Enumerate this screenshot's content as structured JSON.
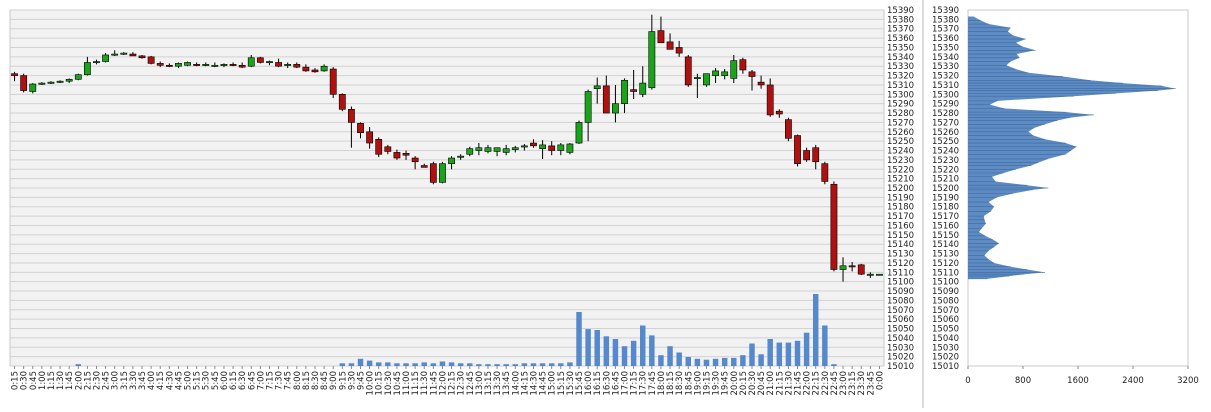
{
  "chart_data": [
    {
      "type": "candlestick",
      "title": "",
      "xlabel": "",
      "ylabel": "",
      "ylim": [
        15010,
        15390
      ],
      "y_tick_step": 10,
      "grid": true,
      "x_labels": [
        "0:15",
        "0:30",
        "0:45",
        "1:00",
        "1:15",
        "1:30",
        "1:45",
        "2:00",
        "2:15",
        "2:30",
        "2:45",
        "3:00",
        "3:15",
        "3:30",
        "3:45",
        "4:00",
        "4:15",
        "4:30",
        "4:45",
        "5:00",
        "5:15",
        "5:30",
        "5:45",
        "6:00",
        "6:15",
        "6:30",
        "6:45",
        "7:00",
        "7:15",
        "7:30",
        "7:45",
        "8:00",
        "8:15",
        "8:30",
        "8:45",
        "9:00",
        "9:15",
        "9:30",
        "9:45",
        "10:00",
        "10:15",
        "10:30",
        "10:45",
        "11:00",
        "11:15",
        "11:30",
        "11:45",
        "12:00",
        "12:15",
        "12:30",
        "12:45",
        "13:00",
        "13:15",
        "13:30",
        "13:45",
        "14:00",
        "14:15",
        "14:30",
        "14:45",
        "15:00",
        "15:15",
        "15:30",
        "15:45",
        "16:00",
        "16:15",
        "16:30",
        "16:45",
        "17:00",
        "17:15",
        "17:30",
        "17:45",
        "18:00",
        "18:15",
        "18:30",
        "18:45",
        "19:00",
        "19:15",
        "19:30",
        "19:45",
        "20:00",
        "20:15",
        "20:30",
        "20:45",
        "21:00",
        "21:15",
        "21:30",
        "21:45",
        "22:00",
        "22:15",
        "22:30",
        "22:45",
        "23:00",
        "23:15",
        "23:30",
        "23:45",
        "0:00"
      ],
      "ohlc": [
        [
          15322,
          15324,
          15314,
          15320
        ],
        [
          15320,
          15322,
          15302,
          15304
        ],
        [
          15303,
          15312,
          15301,
          15311
        ],
        [
          15311,
          15313,
          15310,
          15312
        ],
        [
          15312,
          15314,
          15311,
          15313
        ],
        [
          15313,
          15315,
          15312,
          15314
        ],
        [
          15314,
          15317,
          15312,
          15316
        ],
        [
          15316,
          15322,
          15315,
          15321
        ],
        [
          15321,
          15340,
          15320,
          15334
        ],
        [
          15334,
          15337,
          15332,
          15335
        ],
        [
          15335,
          15344,
          15334,
          15342
        ],
        [
          15342,
          15347,
          15341,
          15343
        ],
        [
          15343,
          15345,
          15342,
          15344
        ],
        [
          15343,
          15345,
          15341,
          15341
        ],
        [
          15341,
          15342,
          15338,
          15339
        ],
        [
          15340,
          15341,
          15332,
          15333
        ],
        [
          15333,
          15335,
          15329,
          15331
        ],
        [
          15331,
          15333,
          15329,
          15330
        ],
        [
          15330,
          15334,
          15328,
          15333
        ],
        [
          15331,
          15335,
          15330,
          15334
        ],
        [
          15332,
          15334,
          15330,
          15331
        ],
        [
          15331,
          15334,
          15330,
          15332
        ],
        [
          15331,
          15334,
          15329,
          15331
        ],
        [
          15331,
          15333,
          15329,
          15332
        ],
        [
          15332,
          15334,
          15330,
          15331
        ],
        [
          15331,
          15334,
          15328,
          15329
        ],
        [
          15330,
          15342,
          15329,
          15339
        ],
        [
          15339,
          15340,
          15333,
          15334
        ],
        [
          15334,
          15336,
          15331,
          15335
        ],
        [
          15334,
          15338,
          15329,
          15330
        ],
        [
          15331,
          15334,
          15328,
          15332
        ],
        [
          15332,
          15334,
          15328,
          15329
        ],
        [
          15329,
          15332,
          15324,
          15325
        ],
        [
          15326,
          15328,
          15323,
          15324
        ],
        [
          15325,
          15332,
          15324,
          15330
        ],
        [
          15327,
          15329,
          15296,
          15300
        ],
        [
          15300,
          15301,
          15282,
          15284
        ],
        [
          15284,
          15287,
          15243,
          15270
        ],
        [
          15269,
          15270,
          15253,
          15259
        ],
        [
          15260,
          15265,
          15242,
          15248
        ],
        [
          15252,
          15254,
          15233,
          15236
        ],
        [
          15244,
          15246,
          15236,
          15239
        ],
        [
          15238,
          15241,
          15230,
          15232
        ],
        [
          15237,
          15240,
          15230,
          15235
        ],
        [
          15232,
          15234,
          15220,
          15228
        ],
        [
          15224,
          15226,
          15222,
          15222
        ],
        [
          15226,
          15228,
          15204,
          15206
        ],
        [
          15206,
          15228,
          15205,
          15226
        ],
        [
          15226,
          15234,
          15220,
          15232
        ],
        [
          15233,
          15236,
          15230,
          15234
        ],
        [
          15236,
          15244,
          15234,
          15242
        ],
        [
          15240,
          15248,
          15235,
          15243
        ],
        [
          15239,
          15246,
          15237,
          15243
        ],
        [
          15239,
          15242,
          15234,
          15243
        ],
        [
          15238,
          15246,
          15235,
          15242
        ],
        [
          15241,
          15245,
          15238,
          15243
        ],
        [
          15244,
          15247,
          15240,
          15245
        ],
        [
          15248,
          15252,
          15243,
          15245
        ],
        [
          15242,
          15251,
          15231,
          15246
        ],
        [
          15245,
          15250,
          15235,
          15240
        ],
        [
          15240,
          15248,
          15235,
          15246
        ],
        [
          15238,
          15248,
          15236,
          15247
        ],
        [
          15248,
          15272,
          15247,
          15270
        ],
        [
          15270,
          15305,
          15250,
          15303
        ],
        [
          15306,
          15318,
          15290,
          15309
        ],
        [
          15309,
          15320,
          15282,
          15280
        ],
        [
          15280,
          15310,
          15270,
          15290
        ],
        [
          15290,
          15317,
          15280,
          15315
        ],
        [
          15305,
          15326,
          15295,
          15303
        ],
        [
          15300,
          15330,
          15297,
          15312
        ],
        [
          15307,
          15385,
          15305,
          15367
        ],
        [
          15368,
          15383,
          15355,
          15355
        ],
        [
          15356,
          15365,
          15348,
          15348
        ],
        [
          15350,
          15357,
          15340,
          15344
        ],
        [
          15340,
          15342,
          15308,
          15310
        ],
        [
          15317,
          15322,
          15296,
          15318
        ],
        [
          15310,
          15322,
          15308,
          15322
        ],
        [
          15320,
          15328,
          15312,
          15325
        ],
        [
          15320,
          15327,
          15316,
          15324
        ],
        [
          15317,
          15342,
          15312,
          15336
        ],
        [
          15337,
          15339,
          15322,
          15326
        ],
        [
          15324,
          15326,
          15304,
          15319
        ],
        [
          15313,
          15320,
          15306,
          15310
        ],
        [
          15310,
          15317,
          15276,
          15278
        ],
        [
          15282,
          15284,
          15275,
          15279
        ],
        [
          15273,
          15275,
          15250,
          15253
        ],
        [
          15256,
          15257,
          15223,
          15226
        ],
        [
          15240,
          15243,
          15228,
          15230
        ],
        [
          15243,
          15246,
          15220,
          15228
        ],
        [
          15226,
          15228,
          15204,
          15207
        ],
        [
          15204,
          15207,
          15111,
          15113
        ],
        [
          15113,
          15126,
          15100,
          15117
        ],
        [
          15117,
          15121,
          15111,
          15116
        ],
        [
          15118,
          15119,
          15107,
          15108
        ],
        [
          15108,
          15110,
          15104,
          15108
        ],
        [
          15108,
          15108,
          15108,
          15108
        ]
      ],
      "volume": [
        0,
        0,
        0,
        0,
        0,
        0,
        0,
        2,
        0,
        0,
        0,
        0,
        0,
        0,
        0,
        0,
        0,
        0,
        0,
        0,
        0,
        0,
        0,
        0,
        0,
        0,
        0,
        0,
        0,
        0,
        0,
        0,
        0,
        0,
        0,
        0,
        3,
        3,
        8,
        6,
        4,
        4,
        3,
        3,
        3,
        4,
        3,
        5,
        4,
        3,
        3,
        2,
        2,
        2,
        2,
        2,
        3,
        3,
        3,
        3,
        3,
        4,
        60,
        41,
        40,
        33,
        30,
        22,
        28,
        45,
        34,
        12,
        22,
        15,
        10,
        8,
        7,
        8,
        9,
        9,
        12,
        25,
        13,
        30,
        26,
        26,
        28,
        37,
        80,
        45,
        2,
        0,
        0,
        0,
        0,
        0
      ],
      "up_color": "#1aa41a",
      "down_color": "#b01010",
      "volume_color": "#5588cc"
    },
    {
      "type": "bar",
      "orientation": "horizontal",
      "title": "",
      "xlim": [
        0,
        3200
      ],
      "x_ticks": [
        0,
        800,
        1600,
        2400,
        3200
      ],
      "ylim": [
        15010,
        15390
      ],
      "y_tick_step": 10,
      "bar_color": "#4f81bd",
      "profile": [
        [
          15103,
          280
        ],
        [
          15106,
          600
        ],
        [
          15108,
          820
        ],
        [
          15110,
          1120
        ],
        [
          15113,
          860
        ],
        [
          15116,
          620
        ],
        [
          15120,
          380
        ],
        [
          15124,
          300
        ],
        [
          15128,
          240
        ],
        [
          15133,
          300
        ],
        [
          15137,
          380
        ],
        [
          15141,
          450
        ],
        [
          15145,
          360
        ],
        [
          15149,
          250
        ],
        [
          15153,
          160
        ],
        [
          15157,
          200
        ],
        [
          15162,
          260
        ],
        [
          15166,
          240
        ],
        [
          15170,
          230
        ],
        [
          15175,
          330
        ],
        [
          15180,
          380
        ],
        [
          15185,
          300
        ],
        [
          15190,
          420
        ],
        [
          15194,
          650
        ],
        [
          15198,
          940
        ],
        [
          15200,
          1170
        ],
        [
          15203,
          860
        ],
        [
          15207,
          400
        ],
        [
          15212,
          350
        ],
        [
          15216,
          520
        ],
        [
          15220,
          700
        ],
        [
          15224,
          920
        ],
        [
          15227,
          1020
        ],
        [
          15231,
          1160
        ],
        [
          15236,
          1420
        ],
        [
          15240,
          1500
        ],
        [
          15244,
          1580
        ],
        [
          15248,
          1420
        ],
        [
          15252,
          1120
        ],
        [
          15256,
          950
        ],
        [
          15260,
          880
        ],
        [
          15264,
          960
        ],
        [
          15268,
          1120
        ],
        [
          15272,
          1300
        ],
        [
          15275,
          1480
        ],
        [
          15278,
          1830
        ],
        [
          15281,
          1430
        ],
        [
          15285,
          520
        ],
        [
          15289,
          320
        ],
        [
          15293,
          430
        ],
        [
          15298,
          1540
        ],
        [
          15301,
          2150
        ],
        [
          15304,
          2760
        ],
        [
          15306,
          3020
        ],
        [
          15309,
          2820
        ],
        [
          15312,
          2250
        ],
        [
          15315,
          1780
        ],
        [
          15319,
          1380
        ],
        [
          15323,
          880
        ],
        [
          15327,
          690
        ],
        [
          15331,
          560
        ],
        [
          15335,
          620
        ],
        [
          15339,
          750
        ],
        [
          15343,
          710
        ],
        [
          15347,
          980
        ],
        [
          15351,
          790
        ],
        [
          15355,
          700
        ],
        [
          15359,
          840
        ],
        [
          15363,
          650
        ],
        [
          15367,
          580
        ],
        [
          15371,
          620
        ],
        [
          15375,
          300
        ],
        [
          15379,
          180
        ],
        [
          15383,
          80
        ]
      ]
    }
  ]
}
